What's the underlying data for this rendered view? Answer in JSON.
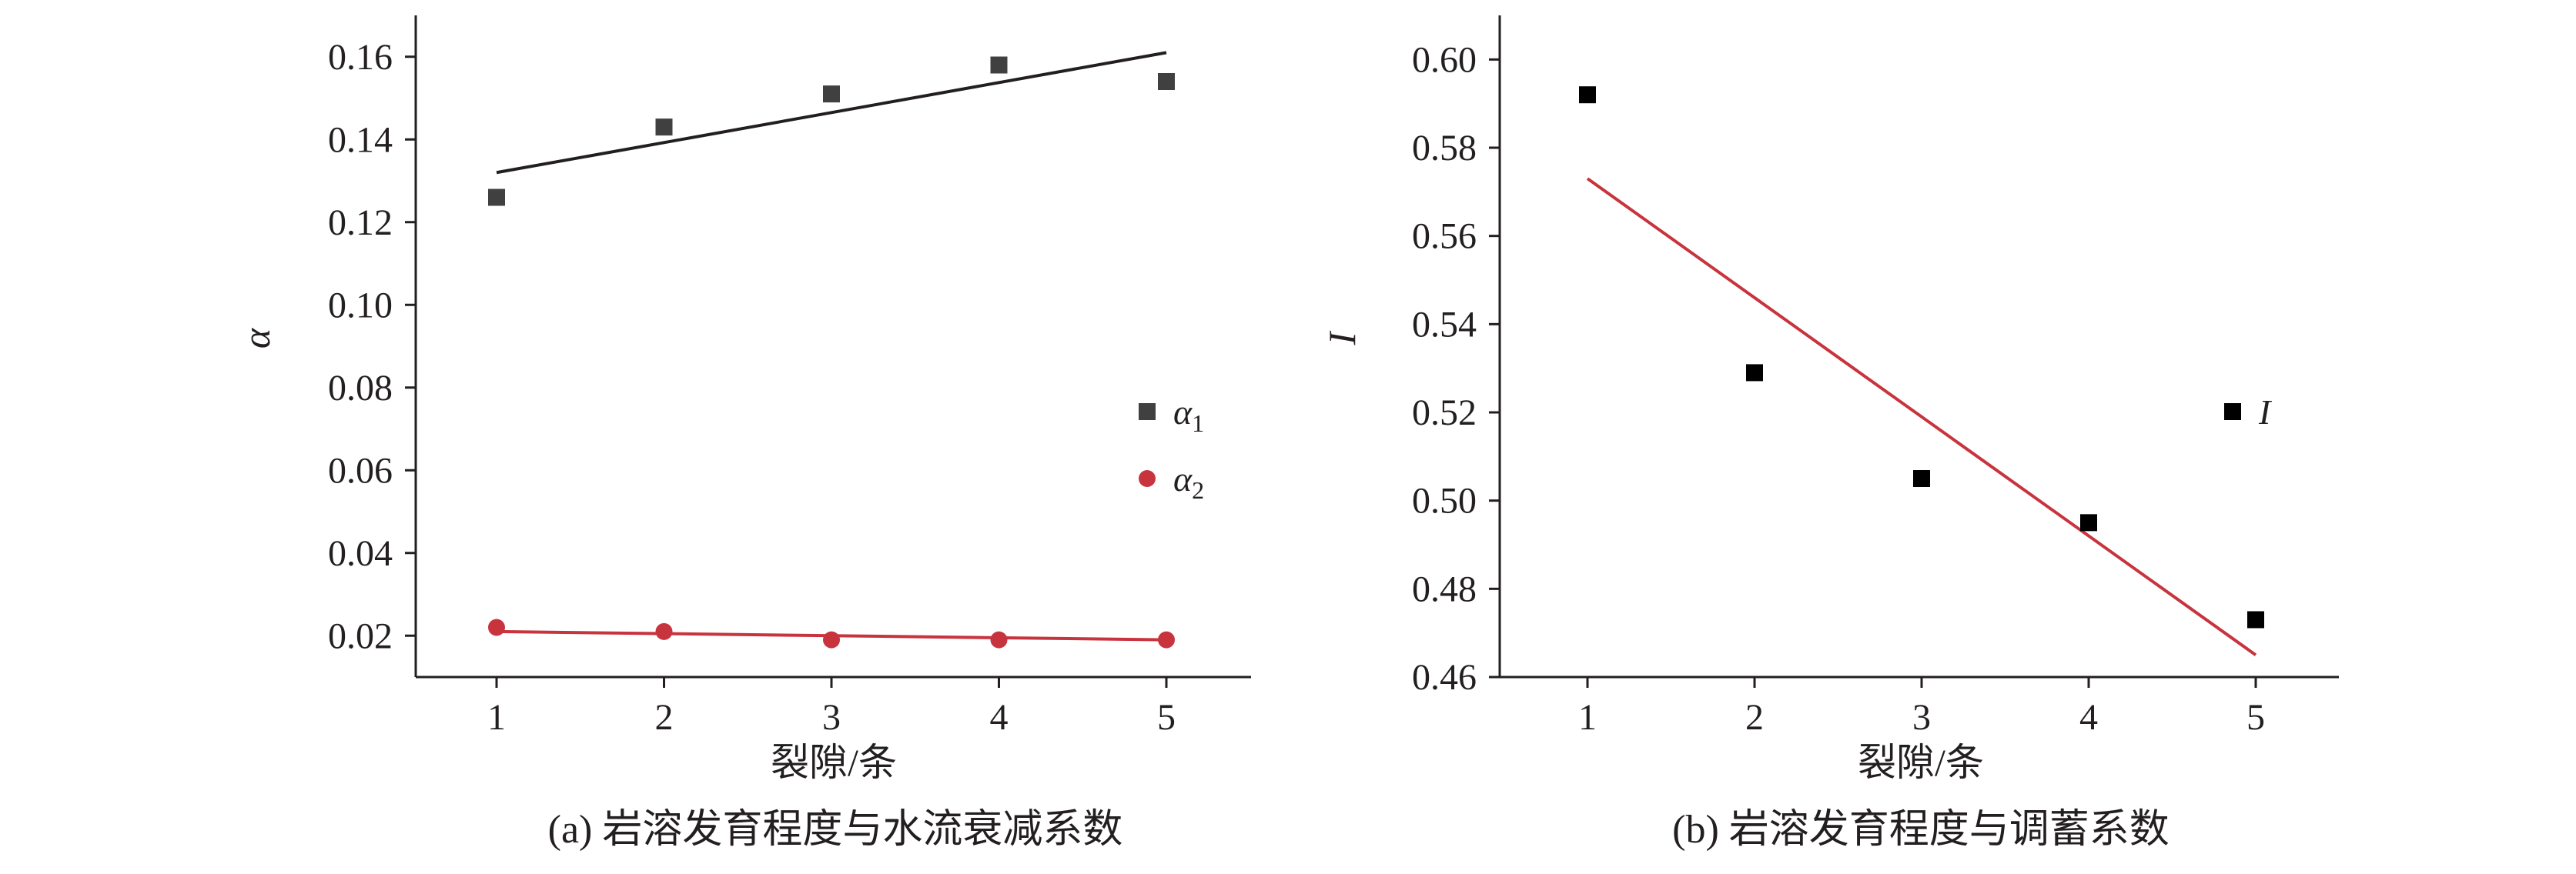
{
  "chart_data": [
    {
      "type": "scatter",
      "caption": "(a) 岩溶发育程度与水流衰减系数",
      "xlabel": "裂隙/条",
      "ylabel": "α",
      "x_ticks": [
        "1",
        "2",
        "3",
        "4",
        "5"
      ],
      "y_ticks": [
        "0.02",
        "0.04",
        "0.06",
        "0.08",
        "0.10",
        "0.12",
        "0.14",
        "0.16"
      ],
      "xlim": [
        0.5,
        5.5
      ],
      "ylim": [
        0.01,
        0.17
      ],
      "grid": false,
      "legend_position": "right",
      "series": [
        {
          "name": "α1",
          "marker": "square",
          "color": "#404040",
          "x": [
            1,
            2,
            3,
            4,
            5
          ],
          "y": [
            0.126,
            0.143,
            0.151,
            0.158,
            0.154
          ],
          "fit_line": {
            "x": [
              1,
              5
            ],
            "y": [
              0.132,
              0.161
            ],
            "color": "#231f20"
          }
        },
        {
          "name": "α2",
          "marker": "circle",
          "color": "#c8343e",
          "x": [
            1,
            2,
            3,
            4,
            5
          ],
          "y": [
            0.022,
            0.021,
            0.019,
            0.019,
            0.019
          ],
          "fit_line": {
            "x": [
              1,
              5
            ],
            "y": [
              0.021,
              0.019
            ],
            "color": "#c8343e"
          }
        }
      ],
      "legend": [
        {
          "symbol": "α",
          "sub": "1"
        },
        {
          "symbol": "α",
          "sub": "2"
        }
      ]
    },
    {
      "type": "scatter",
      "caption": "(b) 岩溶发育程度与调蓄系数",
      "xlabel": "裂隙/条",
      "ylabel": "I",
      "x_ticks": [
        "1",
        "2",
        "3",
        "4",
        "5"
      ],
      "y_ticks": [
        "0.46",
        "0.48",
        "0.50",
        "0.52",
        "0.54",
        "0.56",
        "0.58",
        "0.60"
      ],
      "xlim": [
        0.5,
        5.5
      ],
      "ylim": [
        0.46,
        0.61
      ],
      "grid": false,
      "legend_position": "right",
      "series": [
        {
          "name": "I",
          "marker": "square",
          "color": "#000000",
          "x": [
            1,
            2,
            3,
            4,
            5
          ],
          "y": [
            0.592,
            0.529,
            0.505,
            0.495,
            0.473
          ],
          "fit_line": {
            "x": [
              1,
              5
            ],
            "y": [
              0.573,
              0.465
            ],
            "color": "#c8343e"
          }
        }
      ],
      "legend": [
        {
          "symbol": "I",
          "sub": ""
        }
      ]
    }
  ]
}
